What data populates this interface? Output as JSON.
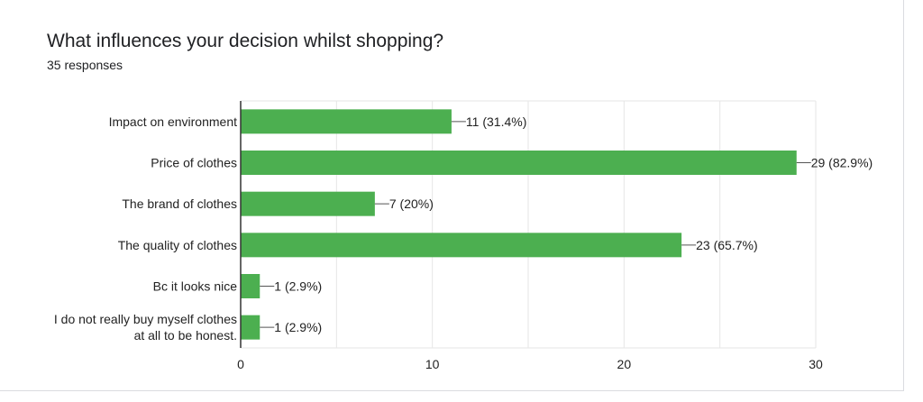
{
  "header": {
    "question": "What influences your decision whilst shopping?",
    "responses": "35 responses"
  },
  "colors": {
    "bar": "#4caf50",
    "grid": "#e6e6e6",
    "axis": "#333333",
    "leader": "#555555"
  },
  "chart_data": {
    "type": "bar",
    "orientation": "horizontal",
    "title": "What influences your decision whilst shopping?",
    "subtitle": "35 responses",
    "categories": [
      [
        "Impact on environment"
      ],
      [
        "Price of clothes"
      ],
      [
        "The brand of clothes"
      ],
      [
        "The quality of clothes"
      ],
      [
        "Bc it looks nice"
      ],
      [
        "I do not really buy myself clothes",
        "at all to be honest."
      ]
    ],
    "values": [
      11,
      29,
      7,
      23,
      1,
      1
    ],
    "data_labels": [
      "11 (31.4%)",
      "29 (82.9%)",
      "7 (20%)",
      "23 (65.7%)",
      "1 (2.9%)",
      "1 (2.9%)"
    ],
    "xlim": [
      0,
      30
    ],
    "x_ticks": [
      0,
      10,
      20,
      30
    ],
    "grid": true,
    "xlabel": "",
    "ylabel": ""
  }
}
